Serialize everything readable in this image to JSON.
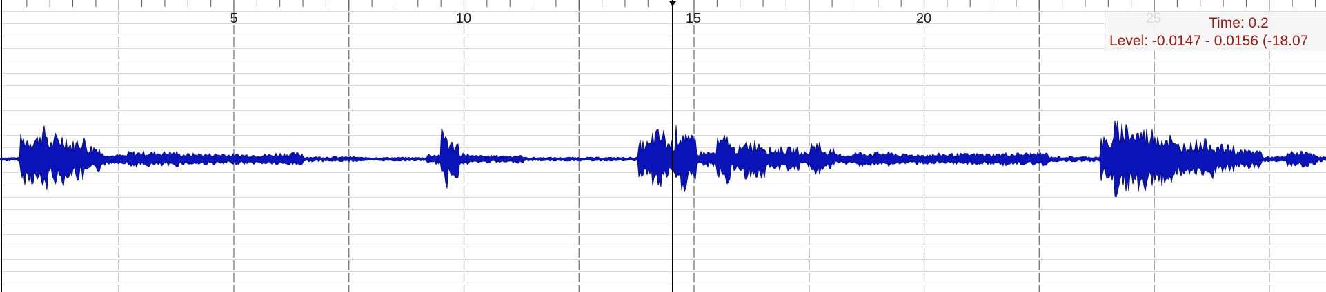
{
  "ruler": {
    "labels": [
      "5",
      "10",
      "15",
      "20",
      "25"
    ]
  },
  "info": {
    "time": "Time: 0.2",
    "level": "Level: -0.0147 - 0.0156 (-18.07"
  },
  "colors": {
    "waveform": "#0a14b8",
    "waveform_edge": "#000a78",
    "grid_h": "#d9d9d9",
    "grid_v": "#6a6a6a",
    "cursor": "#000000",
    "info_text": "#9a1a10"
  }
}
